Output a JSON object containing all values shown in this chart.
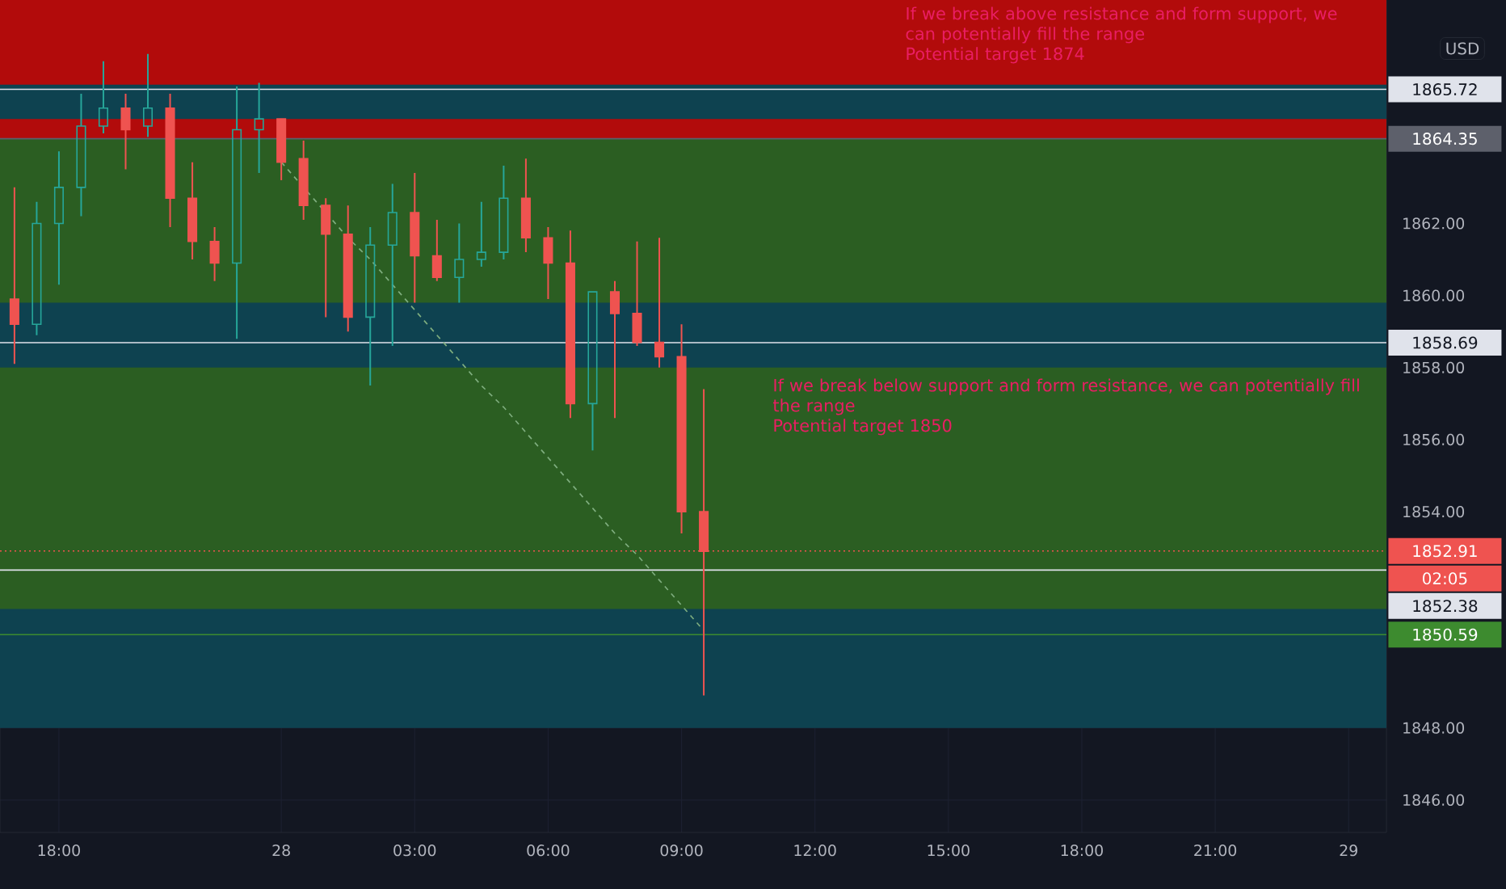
{
  "chart_data": {
    "type": "candlestick",
    "categories": [
      null,
      null,
      "18:00",
      null,
      null,
      null,
      null,
      null,
      null,
      null,
      null,
      null,
      "28",
      null,
      null,
      null,
      null,
      null,
      "03:00",
      null,
      null,
      null,
      null,
      null,
      "06:00",
      null,
      null,
      null,
      null,
      null,
      "09:00",
      null,
      null,
      null,
      null,
      null,
      "12:00",
      null,
      null,
      null,
      null,
      null,
      "15:00",
      null,
      null,
      null,
      null,
      null,
      "18:00",
      null,
      null,
      null,
      null,
      null,
      "21:00",
      null,
      null,
      null,
      null,
      null,
      "29",
      null
    ],
    "ohlc": [
      [
        1859.9,
        1863.0,
        1858.1,
        1859.2
      ],
      [
        1859.2,
        1862.6,
        1858.9,
        1862.0
      ],
      [
        1862.0,
        1864.0,
        1860.3,
        1863.0
      ],
      [
        1863.0,
        1865.6,
        1862.2,
        1864.7
      ],
      [
        1864.7,
        1866.5,
        1864.5,
        1865.2
      ],
      [
        1865.2,
        1865.6,
        1863.5,
        1864.6
      ],
      [
        1864.7,
        1866.7,
        1864.4,
        1865.2
      ],
      [
        1865.2,
        1865.6,
        1861.9,
        1862.7
      ],
      [
        1862.7,
        1863.7,
        1861.0,
        1861.5
      ],
      [
        1861.5,
        1861.9,
        1860.4,
        1860.9
      ],
      [
        1860.9,
        1865.8,
        1858.8,
        1864.6
      ],
      [
        1864.6,
        1865.9,
        1863.4,
        1864.9
      ],
      [
        1864.9,
        1864.9,
        1863.2,
        1863.7
      ],
      [
        1863.8,
        1864.3,
        1862.1,
        1862.5
      ],
      [
        1862.5,
        1862.7,
        1859.4,
        1861.7
      ],
      [
        1861.7,
        1862.5,
        1859.0,
        1859.4
      ],
      [
        1859.4,
        1861.9,
        1857.5,
        1861.4
      ],
      [
        1861.4,
        1863.1,
        1858.6,
        1862.3
      ],
      [
        1862.3,
        1863.4,
        1859.8,
        1861.1
      ],
      [
        1861.1,
        1862.1,
        1860.4,
        1860.5
      ],
      [
        1860.5,
        1862.0,
        1859.8,
        1861.0
      ],
      [
        1861.0,
        1862.6,
        1860.8,
        1861.2
      ],
      [
        1861.2,
        1863.6,
        1861.0,
        1862.7
      ],
      [
        1862.7,
        1863.8,
        1861.2,
        1861.6
      ],
      [
        1861.6,
        1861.9,
        1859.9,
        1860.9
      ],
      [
        1860.9,
        1861.8,
        1856.6,
        1857.0
      ],
      [
        1857.0,
        1860.1,
        1855.7,
        1860.1
      ],
      [
        1860.1,
        1860.4,
        1856.6,
        1859.5
      ],
      [
        1859.5,
        1861.5,
        1858.6,
        1858.7
      ],
      [
        1858.7,
        1861.6,
        1858.0,
        1858.3
      ],
      [
        1858.3,
        1859.2,
        1853.4,
        1854.0
      ],
      [
        1854.0,
        1857.4,
        1848.9,
        1852.9
      ],
      null,
      null,
      null,
      null,
      null,
      null,
      null,
      null,
      null,
      null,
      null,
      null,
      null,
      null,
      null,
      null,
      null,
      null,
      null,
      null,
      null,
      null,
      null,
      null,
      null,
      null,
      null,
      null,
      null,
      null
    ],
    "colors": [
      "#ef5350",
      "#26a69a",
      "#26a69a",
      "#26a69a",
      "#26a69a",
      "#ef5350",
      "#26a69a",
      "#ef5350",
      "#ef5350",
      "#ef5350",
      "#26a69a",
      "#26a69a",
      "#ef5350",
      "#ef5350",
      "#ef5350",
      "#ef5350",
      "#26a69a",
      "#26a69a",
      "#ef5350",
      "#ef5350",
      "#26a69a",
      "#26a69a",
      "#26a69a",
      "#ef5350",
      "#ef5350",
      "#ef5350",
      "#26a69a",
      "#ef5350",
      "#ef5350",
      "#ef5350",
      "#ef5350",
      "#ef5350",
      null,
      null,
      null,
      null,
      null,
      null,
      null,
      null,
      null,
      null,
      null,
      null,
      null,
      null,
      null,
      null,
      null,
      null,
      null,
      null,
      null,
      null,
      null,
      null,
      null,
      null,
      null,
      null,
      null,
      null
    ],
    "series": [
      {
        "type": "line",
        "color": "#7fae7f",
        "line_style": "dashed",
        "values": [
          null,
          null,
          null,
          null,
          null,
          null,
          null,
          null,
          null,
          null,
          null,
          null,
          1863.7,
          1863.0,
          1862.3,
          1861.6,
          1861.0,
          1860.3,
          1859.6,
          1858.9,
          1858.2,
          1857.5,
          1856.9,
          1856.2,
          1855.5,
          1854.8,
          1854.1,
          1853.4,
          1852.8,
          1852.1,
          1851.4,
          1850.7,
          null,
          null,
          null,
          null,
          null,
          null,
          null,
          null,
          null,
          null,
          null,
          null,
          null,
          null,
          null,
          null,
          null,
          null,
          null,
          null,
          null,
          null,
          null,
          null,
          null,
          null,
          null,
          null,
          null,
          null
        ]
      }
    ],
    "ylim": [
      1845.1,
      1868.2
    ],
    "yticks": [
      {
        "value": 1846,
        "label": "1846.00"
      },
      {
        "value": 1848,
        "label": "1848.00"
      },
      {
        "value": 1854,
        "label": "1854.00"
      },
      {
        "value": 1856,
        "label": "1856.00"
      },
      {
        "value": 1858,
        "label": "1858.00"
      },
      {
        "value": 1860,
        "label": "1860.00"
      },
      {
        "value": 1862,
        "label": "1862.00"
      }
    ],
    "grid": true,
    "bands": [
      {
        "axis": "y",
        "from": 1864.35,
        "to": 1868.2,
        "color": "#b20b0b"
      },
      {
        "axis": "y",
        "from": 1850.59,
        "to": 1864.35,
        "color": "#2b5e22"
      },
      {
        "axis": "y",
        "from": 1864.9,
        "to": 1865.85,
        "color": "#0e4250"
      },
      {
        "axis": "y",
        "from": 1858.0,
        "to": 1859.8,
        "color": "#0e4250"
      },
      {
        "axis": "y",
        "from": 1848.0,
        "to": 1851.3,
        "color": "#0e4250"
      }
    ],
    "ref_lines": [
      {
        "axis": "y",
        "value": 1865.72,
        "label": "1865.72",
        "color": "#e0e3eb"
      },
      {
        "axis": "y",
        "value": 1864.35,
        "label": "1864.35",
        "color": "#5d606b"
      },
      {
        "axis": "y",
        "value": 1858.69,
        "label": "1858.69",
        "color": "#e0e3eb"
      },
      {
        "axis": "y",
        "value": 1852.91,
        "label": "1852.91",
        "color": "#ef5350",
        "line_style": "dotted"
      },
      {
        "axis": "y",
        "value": 1852.38,
        "label": "1852.38",
        "color": "#e0e3eb"
      },
      {
        "axis": "y",
        "value": 1850.59,
        "label": "1850.59",
        "color": "#3d8b2f"
      }
    ],
    "annotations": [
      "If we break above resistance and form support, we can potentially fill the range",
      "Potential target 1874",
      "If we break below support and form resistance, we can potentially fill the range",
      "Potential target 1850",
      "02:05",
      "USD"
    ]
  }
}
